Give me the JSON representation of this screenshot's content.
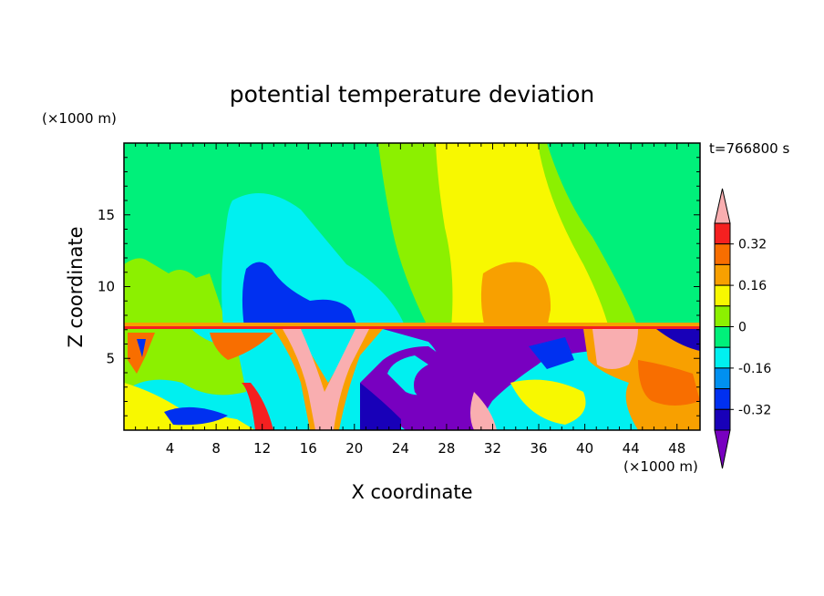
{
  "chart_data": {
    "type": "heatmap",
    "title": "potential temperature deviation",
    "xlabel": "X coordinate",
    "ylabel": "Z coordinate",
    "x_unit": "(×1000 m)",
    "y_unit": "(×1000 m)",
    "time_label": "t=766800 s",
    "xlim": [
      0,
      50
    ],
    "ylim": [
      0,
      20
    ],
    "x_ticks": [
      4,
      8,
      12,
      16,
      20,
      24,
      28,
      32,
      36,
      40,
      44,
      48
    ],
    "y_ticks": [
      5,
      10,
      15
    ],
    "grid": false,
    "colorbar": {
      "levels": [
        -0.4,
        -0.32,
        -0.24,
        -0.16,
        -0.08,
        0,
        0.08,
        0.16,
        0.24,
        0.32,
        0.4
      ],
      "tick_labels": [
        "0.32",
        "0.16",
        "0",
        "-0.16",
        "-0.32"
      ],
      "tick_values": [
        0.32,
        0.16,
        0,
        -0.16,
        -0.32
      ],
      "colors_top_to_bottom": [
        "#f9aeb0",
        "#f52020",
        "#f86e00",
        "#f8a000",
        "#f8f800",
        "#8cf000",
        "#00f07a",
        "#00f0f0",
        "#0090f0",
        "#0030f0",
        "#1800b8",
        "#7800c0"
      ],
      "extend": "both"
    },
    "fields": {
      "upper_layer": "smooth large-scale anomalies above ~7 km",
      "lower_layer": "turbulent small-scale structure below ~7 km"
    }
  },
  "colors": {
    "background": "#ffffff",
    "frame": "#000000"
  }
}
